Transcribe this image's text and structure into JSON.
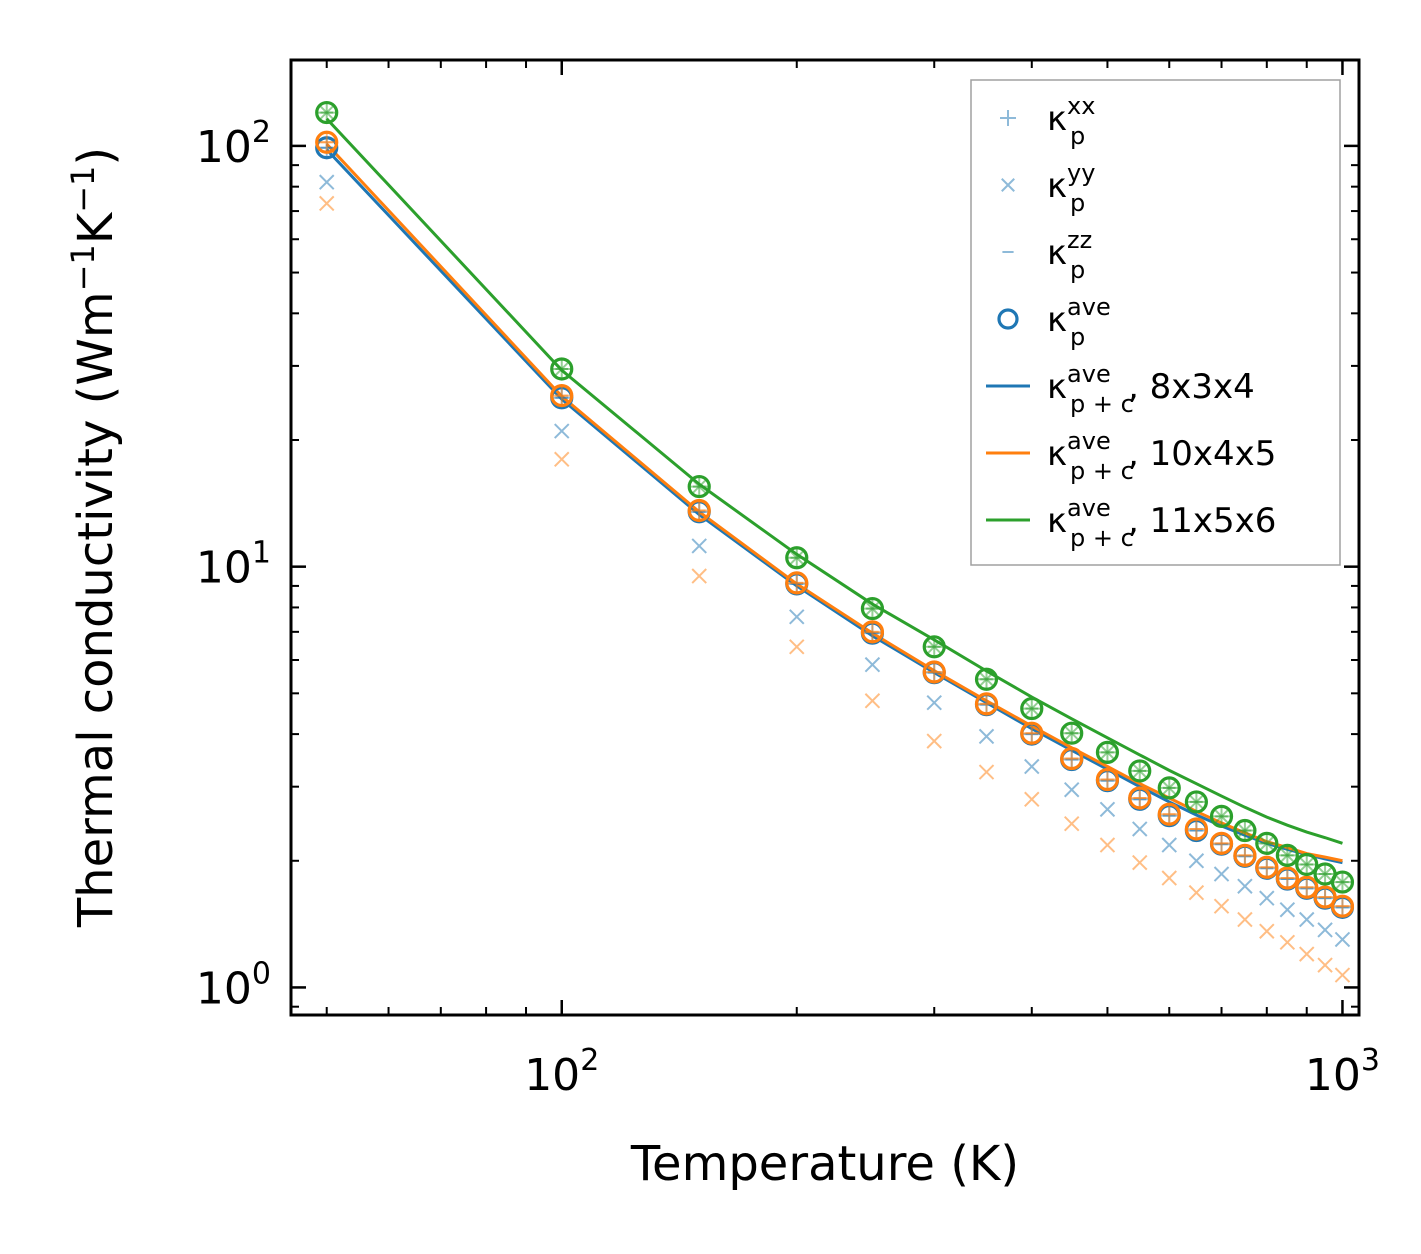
{
  "chart_data": {
    "type": "scatter",
    "xscale": "log",
    "yscale": "log",
    "xlim": [
      45,
      1050
    ],
    "ylim": [
      0.86,
      160
    ],
    "xlabel": "Temperature (K)",
    "ylabel": {
      "main": "Thermal conductivity (Wm",
      "sup1": "−1",
      "mid": "K",
      "sup2": "−1",
      "end": ")"
    },
    "xticks": [
      {
        "value": 100,
        "base": "10",
        "exp": "2"
      },
      {
        "value": 1000,
        "base": "10",
        "exp": "3"
      }
    ],
    "yticks": [
      {
        "value": 1,
        "base": "10",
        "exp": "0"
      },
      {
        "value": 10,
        "base": "10",
        "exp": "1"
      },
      {
        "value": 100,
        "base": "10",
        "exp": "2"
      }
    ],
    "colors": {
      "blue": "#1f77b4",
      "orange": "#ff7f0e",
      "green": "#2ca02c"
    },
    "x": [
      50,
      100,
      150,
      200,
      250,
      300,
      350,
      400,
      450,
      500,
      550,
      600,
      650,
      700,
      750,
      800,
      850,
      900,
      950,
      1000
    ],
    "series": [
      {
        "name": "kxx_blue",
        "color": "#1f77b4",
        "marker": "plus",
        "alpha": 0.5,
        "values": [
          99,
          25.2,
          13.5,
          9.1,
          6.95,
          5.6,
          4.7,
          4.0,
          3.48,
          3.1,
          2.8,
          2.56,
          2.36,
          2.19,
          2.05,
          1.92,
          1.81,
          1.72,
          1.63,
          1.55
        ]
      },
      {
        "name": "kyy_blue",
        "color": "#1f77b4",
        "marker": "x",
        "alpha": 0.5,
        "values": [
          82,
          21,
          11.2,
          7.6,
          5.85,
          4.75,
          3.95,
          3.35,
          2.95,
          2.65,
          2.38,
          2.18,
          2.0,
          1.86,
          1.74,
          1.63,
          1.53,
          1.45,
          1.37,
          1.3
        ]
      },
      {
        "name": "kzz_blue",
        "color": "#1f77b4",
        "marker": "dash",
        "alpha": 0.5,
        "values": [
          99,
          25.2,
          13.5,
          9.1,
          6.95,
          5.6,
          4.7,
          4.0,
          3.48,
          3.1,
          2.8,
          2.56,
          2.36,
          2.19,
          2.05,
          1.92,
          1.81,
          1.72,
          1.63,
          1.55
        ]
      },
      {
        "name": "kave_blue",
        "color": "#1f77b4",
        "marker": "circle",
        "alpha": 1,
        "values": [
          99,
          25.2,
          13.5,
          9.1,
          6.95,
          5.6,
          4.7,
          4.0,
          3.48,
          3.1,
          2.8,
          2.56,
          2.36,
          2.19,
          2.05,
          1.92,
          1.81,
          1.72,
          1.63,
          1.55
        ]
      },
      {
        "name": "kxx_orange",
        "color": "#ff7f0e",
        "marker": "plus",
        "alpha": 0.5,
        "values": [
          102,
          25.5,
          13.6,
          9.15,
          7.0,
          5.62,
          4.72,
          4.02,
          3.5,
          3.12,
          2.82,
          2.58,
          2.38,
          2.2,
          2.06,
          1.93,
          1.82,
          1.73,
          1.64,
          1.56
        ]
      },
      {
        "name": "kyy_orange",
        "color": "#ff7f0e",
        "marker": "x",
        "alpha": 0.5,
        "values": [
          73,
          18,
          9.5,
          6.45,
          4.8,
          3.85,
          3.25,
          2.8,
          2.45,
          2.18,
          1.98,
          1.82,
          1.68,
          1.56,
          1.45,
          1.36,
          1.28,
          1.2,
          1.13,
          1.07
        ]
      },
      {
        "name": "kzz_orange",
        "color": "#ff7f0e",
        "marker": "dash",
        "alpha": 0.5,
        "values": [
          102,
          25.5,
          13.6,
          9.15,
          7.0,
          5.62,
          4.72,
          4.02,
          3.5,
          3.12,
          2.82,
          2.58,
          2.38,
          2.2,
          2.06,
          1.93,
          1.82,
          1.73,
          1.64,
          1.56
        ]
      },
      {
        "name": "kave_orange",
        "color": "#ff7f0e",
        "marker": "circle",
        "alpha": 1,
        "values": [
          102,
          25.5,
          13.6,
          9.15,
          7.0,
          5.62,
          4.72,
          4.02,
          3.5,
          3.12,
          2.82,
          2.58,
          2.38,
          2.2,
          2.06,
          1.93,
          1.82,
          1.73,
          1.64,
          1.56
        ]
      },
      {
        "name": "kxx_green",
        "color": "#2ca02c",
        "marker": "plus",
        "alpha": 0.5,
        "values": [
          120,
          29.5,
          15.5,
          10.5,
          7.95,
          6.45,
          5.4,
          4.6,
          4.02,
          3.62,
          3.27,
          2.98,
          2.76,
          2.55,
          2.36,
          2.2,
          2.06,
          1.96,
          1.86,
          1.78
        ]
      },
      {
        "name": "kyy_green",
        "color": "#2ca02c",
        "marker": "x",
        "alpha": 0.5,
        "values": [
          120,
          29.5,
          15.5,
          10.5,
          7.95,
          6.45,
          5.4,
          4.6,
          4.02,
          3.62,
          3.27,
          2.98,
          2.76,
          2.55,
          2.36,
          2.2,
          2.06,
          1.96,
          1.86,
          1.78
        ]
      },
      {
        "name": "kzz_green",
        "color": "#2ca02c",
        "marker": "dash",
        "alpha": 0.5,
        "values": [
          120,
          29.5,
          15.5,
          10.5,
          7.95,
          6.45,
          5.4,
          4.6,
          4.02,
          3.62,
          3.27,
          2.98,
          2.76,
          2.55,
          2.36,
          2.2,
          2.06,
          1.96,
          1.86,
          1.78
        ]
      },
      {
        "name": "kave_green",
        "color": "#2ca02c",
        "marker": "circle",
        "alpha": 1,
        "values": [
          120,
          29.5,
          15.5,
          10.5,
          7.95,
          6.45,
          5.4,
          4.6,
          4.02,
          3.62,
          3.27,
          2.98,
          2.76,
          2.55,
          2.36,
          2.2,
          2.06,
          1.96,
          1.86,
          1.78
        ]
      }
    ],
    "lines": [
      {
        "name": "8x3x4",
        "color": "#1f77b4",
        "values": [
          98,
          25,
          13.3,
          9.0,
          6.85,
          5.6,
          4.75,
          4.12,
          3.66,
          3.3,
          3.0,
          2.76,
          2.57,
          2.42,
          2.3,
          2.2,
          2.13,
          2.07,
          2.02,
          1.98
        ]
      },
      {
        "name": "10x4x5",
        "color": "#ff7f0e",
        "values": [
          101,
          25.4,
          13.5,
          9.1,
          6.95,
          5.66,
          4.8,
          4.18,
          3.71,
          3.35,
          3.05,
          2.82,
          2.62,
          2.46,
          2.33,
          2.22,
          2.15,
          2.08,
          2.04,
          2.0
        ]
      },
      {
        "name": "11x5x6",
        "color": "#2ca02c",
        "values": [
          116,
          29.3,
          15.7,
          10.7,
          8.15,
          6.7,
          5.65,
          4.9,
          4.35,
          3.92,
          3.57,
          3.28,
          3.05,
          2.85,
          2.68,
          2.54,
          2.43,
          2.34,
          2.27,
          2.2
        ]
      }
    ],
    "legend": {
      "position": "upper right",
      "entries": [
        {
          "marker": "plus",
          "color": "#1f77b4",
          "alpha": 0.5,
          "base": "κ",
          "sup": "xx",
          "sub": "p",
          "suffix": ""
        },
        {
          "marker": "x",
          "color": "#1f77b4",
          "alpha": 0.5,
          "base": "κ",
          "sup": "yy",
          "sub": "p",
          "suffix": ""
        },
        {
          "marker": "dash",
          "color": "#1f77b4",
          "alpha": 0.5,
          "base": "κ",
          "sup": "zz",
          "sub": "p",
          "suffix": ""
        },
        {
          "marker": "circle",
          "color": "#1f77b4",
          "alpha": 1,
          "base": "κ",
          "sup": "ave",
          "sub": "p",
          "suffix": ""
        },
        {
          "marker": "line",
          "color": "#1f77b4",
          "alpha": 1,
          "base": "κ",
          "sup": "ave",
          "sub": "p + c",
          "suffix": ", 8x3x4"
        },
        {
          "marker": "line",
          "color": "#ff7f0e",
          "alpha": 1,
          "base": "κ",
          "sup": "ave",
          "sub": "p + c",
          "suffix": ", 10x4x5"
        },
        {
          "marker": "line",
          "color": "#2ca02c",
          "alpha": 1,
          "base": "κ",
          "sup": "ave",
          "sub": "p + c",
          "suffix": ", 11x5x6"
        }
      ]
    }
  }
}
